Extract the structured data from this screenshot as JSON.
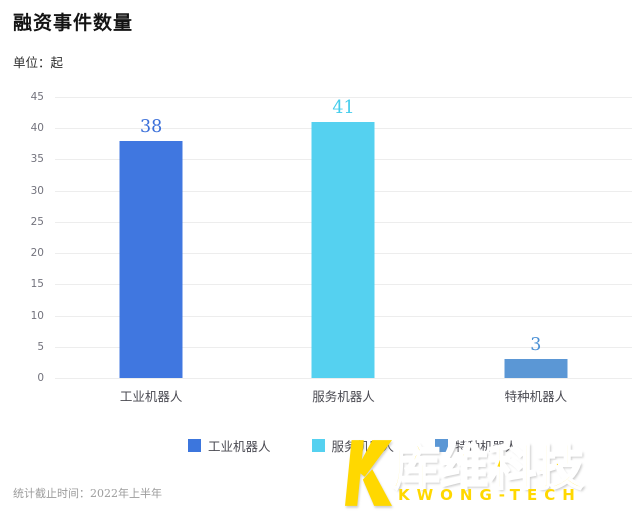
{
  "page": {
    "title": "融资事件数量",
    "unit_label": "单位：起",
    "footnote": "统计截止时间：2022年上半年"
  },
  "chart_data": {
    "type": "bar",
    "title": "融资事件数量",
    "unit": "起",
    "categories": [
      "工业机器人",
      "服务机器人",
      "特种机器人"
    ],
    "values": [
      38,
      41,
      3
    ],
    "bar_colors": [
      "#4077e0",
      "#55d1f0",
      "#5b97d5"
    ],
    "value_label_colors": [
      "#3a6fd9",
      "#45cdec",
      "#4a90d5"
    ],
    "ylim": [
      0,
      45
    ],
    "yticks": [
      45,
      40,
      35,
      30,
      25,
      20,
      15,
      10,
      5,
      0
    ],
    "grid": true,
    "legend_position": "bottom",
    "legend": [
      {
        "label": "工业机器人",
        "color": "#3c76dd"
      },
      {
        "label": "服务机器人",
        "color": "#55d1f0"
      },
      {
        "label": "特种机器人",
        "color": "#5b97d5"
      }
    ]
  },
  "watermark": {
    "logo_icon": "kwong-k-icon",
    "brand_cn": "库维科技",
    "brand_en": "KWONG-TECH",
    "color": "#ffd800"
  }
}
